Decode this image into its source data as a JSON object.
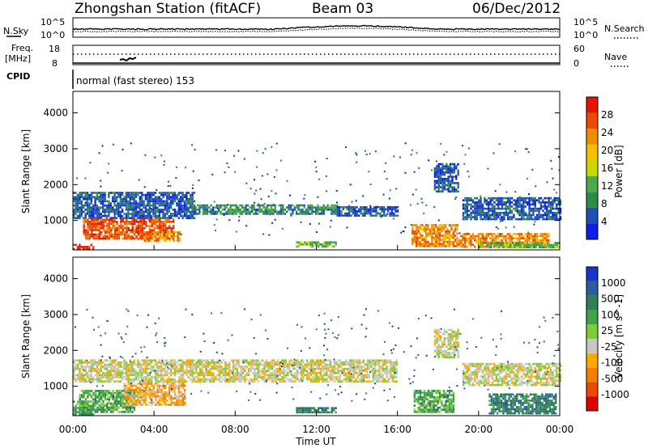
{
  "header": {
    "station": "Zhongshan Station (fitACF)",
    "beam": "Beam 03",
    "date": "06/Dec/2012"
  },
  "top_panels": {
    "nsky_label": "N.Sky",
    "nsky_ticks": [
      "10^5",
      "10^0"
    ],
    "nsearch_label": "N.Search",
    "nsearch_ticks": [
      "10^5",
      "10^0"
    ],
    "freq_label": "Freq.",
    "freq_unit": "[MHz]",
    "freq_ticks": [
      "18",
      "8"
    ],
    "nave_label": "Nave",
    "nave_ticks": [
      "60",
      "0"
    ],
    "cpid_label": "CPID",
    "cpid_text": "normal (fast stereo) 153"
  },
  "power_panel": {
    "ylabel": "Slant Range [km]",
    "yticks": [
      "4000",
      "3000",
      "2000",
      "1000"
    ],
    "colorbar_label": "Power [dB]",
    "colorbar_ticks": [
      "28",
      "24",
      "20",
      "16",
      "12",
      "8",
      "4"
    ],
    "colors": [
      "#0c1fe6",
      "#1f4fb8",
      "#2e8a4a",
      "#4caa4a",
      "#c8d800",
      "#f2c200",
      "#f08c00",
      "#ec4a00",
      "#e41500"
    ]
  },
  "velocity_panel": {
    "ylabel": "Slant Range [km]",
    "yticks": [
      "4000",
      "3000",
      "2000",
      "1000"
    ],
    "colorbar_label": "Velocity [m s^-1]",
    "colorbar_ticks": [
      "1000",
      "500",
      "100",
      "25",
      "-25",
      "-100",
      "-500",
      "-1000"
    ],
    "colors": [
      "#1a32c8",
      "#2a5ca0",
      "#2e7e56",
      "#3fa34a",
      "#7fcc3a",
      "#c8c8c0",
      "#ffaa00",
      "#f28000",
      "#ea4a00",
      "#e00000"
    ]
  },
  "xaxis": {
    "label": "Time UT",
    "ticks": [
      "00:00",
      "04:00",
      "08:00",
      "12:00",
      "16:00",
      "20:00",
      "00:00"
    ]
  },
  "chart_data": [
    {
      "type": "heatmap",
      "title": "Power",
      "ylabel": "Slant Range [km]",
      "xlabel": "Time UT",
      "xlim": [
        "00:00",
        "24:00"
      ],
      "ylim": [
        180,
        4600
      ],
      "colorbar": {
        "label": "Power [dB]",
        "ticks": [
          28,
          24,
          20,
          16,
          12,
          8,
          4
        ]
      },
      "regions": [
        {
          "t": [
            0.0,
            6.0
          ],
          "r": [
            1050,
            1800
          ],
          "level": 1
        },
        {
          "t": [
            6.0,
            13.0
          ],
          "r": [
            1200,
            1450
          ],
          "level": 2
        },
        {
          "t": [
            13.0,
            16.0
          ],
          "r": [
            1150,
            1400
          ],
          "level": 1
        },
        {
          "t": [
            0.5,
            5.0
          ],
          "r": [
            500,
            1050
          ],
          "level": 7
        },
        {
          "t": [
            3.5,
            5.3
          ],
          "r": [
            450,
            700
          ],
          "level": 6
        },
        {
          "t": [
            0.0,
            1.0
          ],
          "r": [
            200,
            350
          ],
          "level": 8
        },
        {
          "t": [
            11.0,
            13.0
          ],
          "r": [
            300,
            420
          ],
          "level": 3
        },
        {
          "t": [
            16.7,
            19.0
          ],
          "r": [
            300,
            900
          ],
          "level": 6
        },
        {
          "t": [
            19.2,
            24.0
          ],
          "r": [
            1050,
            1650
          ],
          "level": 1
        },
        {
          "t": [
            19.0,
            23.5
          ],
          "r": [
            250,
            650
          ],
          "level": 6
        },
        {
          "t": [
            17.8,
            19.0
          ],
          "r": [
            1800,
            2600
          ],
          "level": 1
        },
        {
          "t": [
            20.0,
            24.0
          ],
          "r": [
            250,
            400
          ],
          "level": 3
        }
      ]
    },
    {
      "type": "heatmap",
      "title": "Velocity",
      "ylabel": "Slant Range [km]",
      "xlabel": "Time UT",
      "xlim": [
        "00:00",
        "24:00"
      ],
      "ylim": [
        180,
        4600
      ],
      "colorbar": {
        "label": "Velocity [m s^-1]",
        "ticks": [
          1000,
          500,
          100,
          25,
          -25,
          -100,
          -500,
          -1000
        ]
      },
      "regions": [
        {
          "t": [
            0.0,
            16.0
          ],
          "r": [
            1150,
            1750
          ],
          "level": 5
        },
        {
          "t": [
            19.2,
            24.0
          ],
          "r": [
            1050,
            1650
          ],
          "level": 5
        },
        {
          "t": [
            0.3,
            3.0
          ],
          "r": [
            300,
            900
          ],
          "level": 3
        },
        {
          "t": [
            2.5,
            5.5
          ],
          "r": [
            500,
            1100
          ],
          "level": 6
        },
        {
          "t": [
            0.0,
            1.0
          ],
          "r": [
            200,
            600
          ],
          "level": 3
        },
        {
          "t": [
            11.0,
            13.0
          ],
          "r": [
            300,
            420
          ],
          "level": 2
        },
        {
          "t": [
            16.8,
            18.8
          ],
          "r": [
            300,
            900
          ],
          "level": 3
        },
        {
          "t": [
            20.5,
            23.8
          ],
          "r": [
            250,
            800
          ],
          "level": 2
        },
        {
          "t": [
            17.8,
            19.0
          ],
          "r": [
            1800,
            2600
          ],
          "level": 5
        }
      ]
    }
  ]
}
